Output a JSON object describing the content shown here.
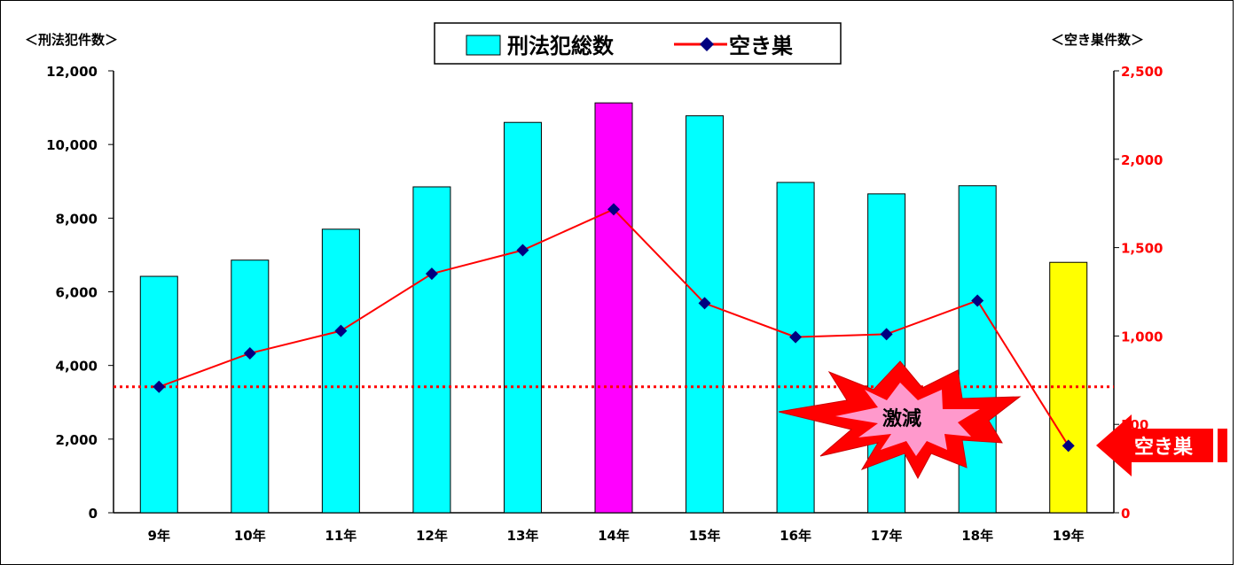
{
  "chart_data": {
    "type": "bar",
    "left_axis_title": "＜刑法犯件数＞",
    "right_axis_title": "＜空き巣件数＞",
    "categories": [
      "9年",
      "10年",
      "11年",
      "12年",
      "13年",
      "14年",
      "15年",
      "16年",
      "17年",
      "18年",
      "19年"
    ],
    "series": [
      {
        "name": "刑法犯総数",
        "type": "bar",
        "axis": "left",
        "values": [
          6420,
          6860,
          7700,
          8850,
          10600,
          11130,
          10780,
          8970,
          8660,
          8880,
          6800
        ],
        "colors": [
          "#00ffff",
          "#00ffff",
          "#00ffff",
          "#00ffff",
          "#00ffff",
          "#ff00ff",
          "#00ffff",
          "#00ffff",
          "#00ffff",
          "#00ffff",
          "#ffff00"
        ]
      },
      {
        "name": "空き巣",
        "type": "line",
        "axis": "left",
        "values": [
          3420,
          4330,
          4940,
          6490,
          7130,
          8240,
          5690,
          4770,
          4850,
          5760,
          1820
        ],
        "line_color": "#ff0000",
        "marker_color": "#000080"
      }
    ],
    "left_axis": {
      "min": 0,
      "max": 12000,
      "ticks": [
        "0",
        "2,000",
        "4,000",
        "6,000",
        "8,000",
        "10,000",
        "12,000"
      ]
    },
    "right_axis": {
      "min": 0,
      "max": 2500,
      "ticks": [
        "0",
        "500",
        "1,000",
        "1,500",
        "2,000",
        "2,500"
      ],
      "color": "#ff0000"
    },
    "reference_line": {
      "value": 3420,
      "color": "#ff0000",
      "style": "dotted"
    },
    "legend": {
      "placement": "top-center"
    },
    "annotations": [
      {
        "text": "激減",
        "shape": "explosion",
        "fill": "#ff0000",
        "inner_fill": "#ff99cc"
      },
      {
        "text": "空き巣",
        "shape": "left-arrow",
        "fill": "#ff0000"
      }
    ],
    "grid": false
  }
}
